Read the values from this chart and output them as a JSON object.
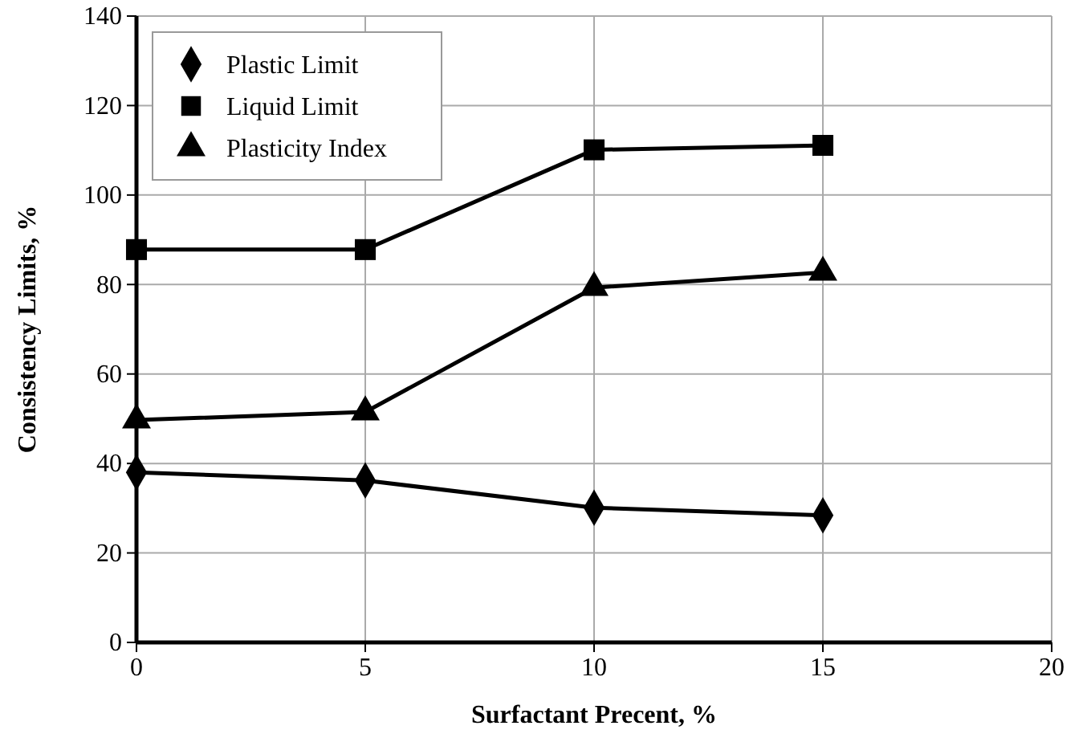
{
  "chart_data": {
    "type": "line",
    "xlabel": "Surfactant Precent, %",
    "ylabel": "Consistency Limits, %",
    "x": [
      0,
      5,
      10,
      15
    ],
    "xlim": [
      0,
      20
    ],
    "xticks": [
      0,
      5,
      10,
      15,
      20
    ],
    "ylim": [
      0,
      140
    ],
    "yticks": [
      0,
      20,
      40,
      60,
      80,
      100,
      120,
      140
    ],
    "grid": true,
    "legend": "top left",
    "line_style": "solid",
    "series": [
      {
        "name": "Plastic Limit",
        "color": "#000000",
        "marker": "diamond",
        "values": [
          38,
          36.2,
          30.1,
          28.4
        ]
      },
      {
        "name": "Liquid Limit",
        "color": "#000000",
        "marker": "square",
        "values": [
          87.8,
          87.8,
          110.1,
          111.1
        ]
      },
      {
        "name": "Plasticity Index",
        "color": "#000000",
        "marker": "triangle",
        "values": [
          49.7,
          51.5,
          79.3,
          82.7
        ]
      }
    ]
  }
}
